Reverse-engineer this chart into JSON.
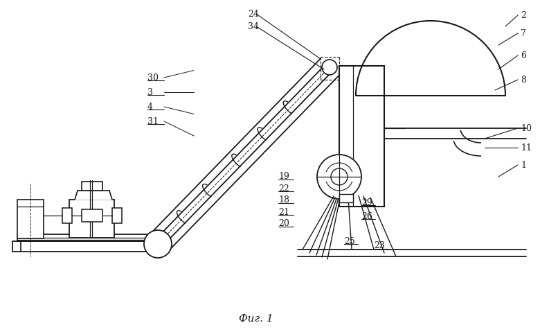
{
  "bg_color": "#ffffff",
  "line_color": "#1a1a1a",
  "fig_width": 7.8,
  "fig_height": 4.79,
  "dpi": 100,
  "caption": "Фиг. 1"
}
